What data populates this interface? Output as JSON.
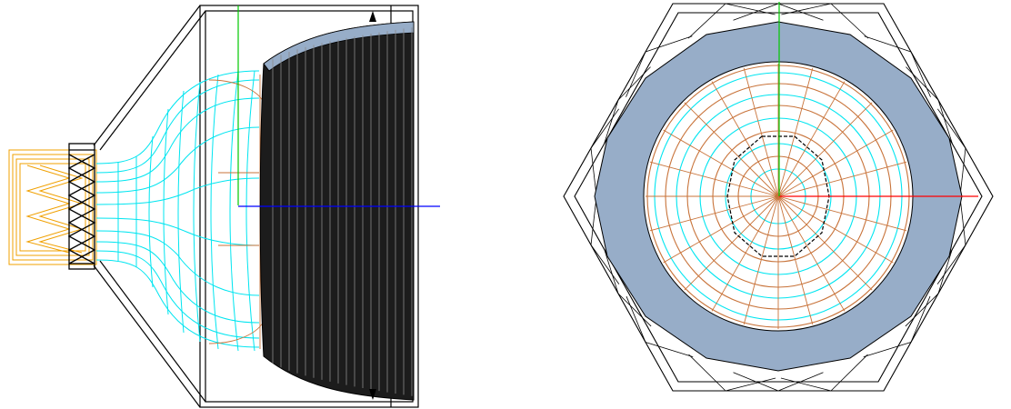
{
  "colors": {
    "background": "#ffffff",
    "frame": "#000000",
    "cyan_mesh": "#00e5f0",
    "orange_mesh": "#c8733a",
    "orange_coil": "#f0a000",
    "steel_blue": "#97adc8",
    "dark_fill": "#1c1c1c",
    "axis_x": "#ff0000",
    "axis_y": "#00c800",
    "axis_z": "#0000ff"
  },
  "views": [
    {
      "name": "side-view",
      "axes": [
        "y-axis",
        "z-axis"
      ]
    },
    {
      "name": "end-view",
      "axes": [
        "x-axis",
        "y-axis"
      ]
    }
  ]
}
